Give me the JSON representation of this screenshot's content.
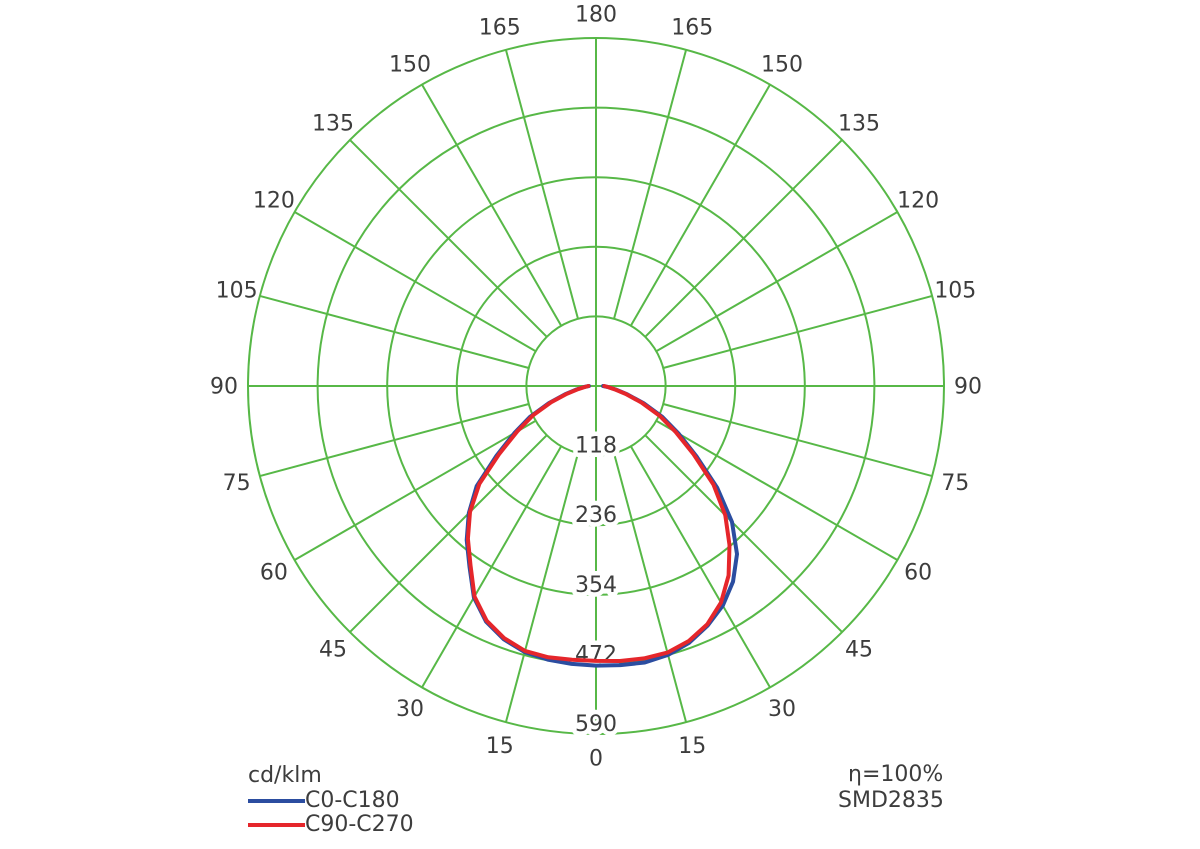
{
  "chart_data": {
    "type": "polar_photometric",
    "unit": "cd/klm",
    "max_value": 590,
    "ring_labels": [
      "118",
      "236",
      "354",
      "472",
      "590"
    ],
    "ring_values": [
      118,
      236,
      354,
      472,
      590
    ],
    "angle_labels": [
      "0",
      "15",
      "30",
      "45",
      "60",
      "75",
      "90",
      "105",
      "120",
      "135",
      "150",
      "165",
      "180"
    ],
    "angle_step_deg": 15,
    "origin_angle_label": "0",
    "gamma_step_deg": 5,
    "grid_color": "#57b847",
    "label_color": "#3d3d3d",
    "series": [
      {
        "name": "C0-C180",
        "color": "#2b4da0",
        "right_plane": "C0",
        "left_plane": "C180",
        "right_values": [
          474,
          475,
          476,
          472,
          463,
          448,
          430,
          405,
          372,
          326,
          268,
          208,
          162,
          124,
          86,
          55,
          34,
          20,
          12
        ],
        "left_values": [
          474,
          473,
          471,
          467,
          457,
          441,
          414,
          374,
          341,
          305,
          264,
          206,
          160,
          123,
          85,
          54,
          33,
          20,
          12
        ]
      },
      {
        "name": "C90-C270",
        "color": "#e5262b",
        "right_plane": "C90",
        "left_plane": "C270",
        "right_values": [
          466,
          468,
          469,
          468,
          460,
          446,
          424,
          392,
          352,
          310,
          260,
          202,
          156,
          119,
          82,
          52,
          32,
          20,
          14
        ],
        "left_values": [
          466,
          466,
          467,
          465,
          455,
          439,
          412,
          371,
          338,
          302,
          258,
          200,
          154,
          118,
          81,
          51,
          31,
          19,
          13
        ]
      }
    ]
  },
  "legend": {
    "unit": "cd/klm",
    "items": [
      {
        "label": "C0-C180",
        "color": "#2b4da0"
      },
      {
        "label": "C90-C270",
        "color": "#e5262b"
      }
    ]
  },
  "annotations": {
    "efficiency": "η=100%",
    "model": "SMD2835"
  }
}
